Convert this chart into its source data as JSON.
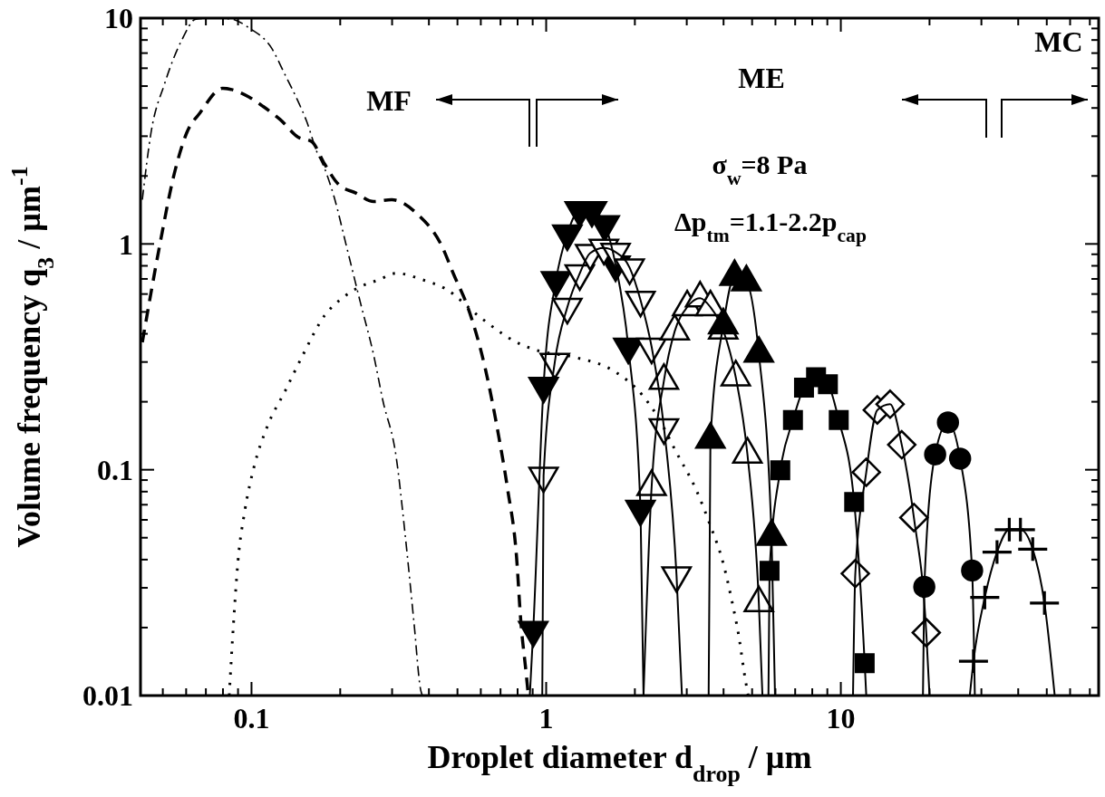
{
  "chart_data": {
    "type": "line",
    "xlabel": "Droplet diameter d$_{drop}$ / µm",
    "ylabel": "Volume frequency q$_{3}$ / µm$^{-1}$",
    "log": "xy",
    "xlim": [
      0.042,
      75
    ],
    "ylim": [
      0.01,
      10
    ],
    "xticks": [
      {
        "value": 0.05,
        "label": null
      },
      {
        "value": 0.06,
        "label": null
      },
      {
        "value": 0.07,
        "label": null
      },
      {
        "value": 0.08,
        "label": null
      },
      {
        "value": 0.09,
        "label": null
      },
      0.1,
      {
        "value": 0.2,
        "label": null
      },
      {
        "value": 0.3,
        "label": null
      },
      {
        "value": 0.4,
        "label": null
      },
      {
        "value": 0.5,
        "label": null
      },
      {
        "value": 0.6,
        "label": null
      },
      {
        "value": 0.7,
        "label": null
      },
      {
        "value": 0.8,
        "label": null
      },
      {
        "value": 0.9,
        "label": null
      },
      1,
      {
        "value": 2,
        "label": null
      },
      {
        "value": 3,
        "label": null
      },
      {
        "value": 4,
        "label": null
      },
      {
        "value": 5,
        "label": null
      },
      {
        "value": 6,
        "label": null
      },
      {
        "value": 7,
        "label": null
      },
      {
        "value": 8,
        "label": null
      },
      {
        "value": 9,
        "label": null
      },
      10,
      {
        "value": 20,
        "label": null
      },
      {
        "value": 30,
        "label": null
      },
      {
        "value": 40,
        "label": null
      },
      {
        "value": 50,
        "label": null
      },
      {
        "value": 60,
        "label": null
      },
      {
        "value": 70,
        "label": null
      }
    ],
    "yticks": [
      0.01,
      {
        "value": 0.02,
        "label": null
      },
      {
        "value": 0.03,
        "label": null
      },
      {
        "value": 0.04,
        "label": null
      },
      {
        "value": 0.05,
        "label": null
      },
      {
        "value": 0.06,
        "label": null
      },
      {
        "value": 0.07,
        "label": null
      },
      {
        "value": 0.08,
        "label": null
      },
      {
        "value": 0.09,
        "label": null
      },
      0.1,
      {
        "value": 0.2,
        "label": null
      },
      {
        "value": 0.3,
        "label": null
      },
      {
        "value": 0.4,
        "label": null
      },
      {
        "value": 0.5,
        "label": null
      },
      {
        "value": 0.6,
        "label": null
      },
      {
        "value": 0.7,
        "label": null
      },
      {
        "value": 0.8,
        "label": null
      },
      {
        "value": 0.9,
        "label": null
      },
      1,
      {
        "value": 2,
        "label": null
      },
      {
        "value": 3,
        "label": null
      },
      {
        "value": 4,
        "label": null
      },
      {
        "value": 5,
        "label": null
      },
      {
        "value": 6,
        "label": null
      },
      {
        "value": 7,
        "label": null
      },
      {
        "value": 8,
        "label": null
      },
      {
        "value": 9,
        "label": null
      },
      10
    ],
    "grid": false,
    "annotations": [
      "MF",
      "ME",
      "MC",
      "σ$_{w}$=8 Pa",
      "Δp$_{tm}$=1.1-2.2p$_{cap}$"
    ],
    "series": [
      {
        "type": "line",
        "line_style": "dashed",
        "color": "#000000",
        "x": [
          0.0426,
          0.0489,
          0.0543,
          0.0603,
          0.0669,
          0.0798,
          0.0982,
          0.109,
          0.125,
          0.144,
          0.16,
          0.177,
          0.197,
          0.226,
          0.26,
          0.299,
          0.369,
          0.439,
          0.487,
          0.541,
          0.622,
          0.69,
          0.74,
          0.793,
          0.821,
          0.855,
          0.87
        ],
        "values": [
          0.367,
          1.0,
          1.97,
          3.11,
          3.81,
          4.89,
          4.47,
          4.08,
          3.56,
          2.97,
          2.84,
          2.26,
          1.84,
          1.68,
          1.54,
          1.57,
          1.34,
          1.0,
          0.726,
          0.528,
          0.279,
          0.141,
          0.082,
          0.0414,
          0.021,
          0.0126,
          0.01
        ]
      },
      {
        "type": "line",
        "line_style": "dashdot",
        "color": "#000000",
        "x": [
          0.0426,
          0.0456,
          0.0507,
          0.0582,
          0.0647,
          0.075,
          0.0855,
          0.0982,
          0.117,
          0.13,
          0.144,
          0.154,
          0.166,
          0.177,
          0.19,
          0.211,
          0.234,
          0.26,
          0.279,
          0.31,
          0.332,
          0.356,
          0.375,
          0.38
        ],
        "values": [
          1.57,
          3.11,
          5.12,
          8.07,
          9.9,
          10,
          9.9,
          9.04,
          7.36,
          5.61,
          4.27,
          3.48,
          2.59,
          2.16,
          1.64,
          0.953,
          0.552,
          0.32,
          0.203,
          0.113,
          0.052,
          0.021,
          0.0106,
          0.01
        ]
      },
      {
        "type": "line",
        "line_style": "dotted",
        "color": "#000000",
        "x": [
          0.084,
          0.0869,
          0.09,
          0.0948,
          0.102,
          0.113,
          0.13,
          0.149,
          0.177,
          0.204,
          0.234,
          0.27,
          0.31,
          0.382,
          0.454,
          0.6,
          0.793,
          0.929,
          1.25,
          1.67,
          2.12,
          2.37,
          2.77,
          3.23,
          3.61,
          3.99,
          4.27,
          4.52,
          4.72,
          4.85
        ],
        "values": [
          0.01,
          0.021,
          0.0396,
          0.0653,
          0.103,
          0.155,
          0.223,
          0.32,
          0.482,
          0.578,
          0.647,
          0.693,
          0.742,
          0.693,
          0.634,
          0.471,
          0.367,
          0.338,
          0.315,
          0.277,
          0.214,
          0.175,
          0.119,
          0.0814,
          0.0565,
          0.0385,
          0.0262,
          0.0179,
          0.0122,
          0.01
        ]
      },
      {
        "type": "line",
        "line_style": "solid",
        "color": "#000000",
        "x": [
          0.88,
          0.904,
          0.98,
          1.08,
          1.18,
          1.3,
          1.43,
          1.58,
          1.72,
          1.9,
          2.09,
          2.14
        ],
        "values": [
          0.01,
          0.0195,
          0.235,
          0.69,
          1.11,
          1.41,
          1.41,
          1.22,
          0.81,
          0.35,
          0.067,
          0.01
        ]
      },
      {
        "type": "line",
        "line_style": "solid",
        "color": "#000000",
        "x": [
          0.97,
          0.98,
          1.07,
          1.18,
          1.3,
          1.41,
          1.57,
          1.72,
          1.92,
          2.09,
          2.28,
          2.51,
          2.77,
          2.89
        ],
        "values": [
          0.01,
          0.094,
          0.3,
          0.525,
          0.74,
          0.91,
          0.96,
          0.92,
          0.785,
          0.565,
          0.35,
          0.154,
          0.034,
          0.01
        ]
      },
      {
        "type": "line",
        "line_style": "solid",
        "color": "#000000",
        "x": [
          2.14,
          2.28,
          2.51,
          2.73,
          3.01,
          3.33,
          3.61,
          3.99,
          4.4,
          4.82,
          5.27,
          5.42
        ],
        "values": [
          0.01,
          0.084,
          0.248,
          0.41,
          0.525,
          0.575,
          0.525,
          0.414,
          0.257,
          0.117,
          0.0257,
          0.01
        ]
      },
      {
        "type": "line",
        "line_style": "solid",
        "color": "#000000",
        "x": [
          3.56,
          3.61,
          3.99,
          4.36,
          4.78,
          5.27,
          5.82,
          5.98
        ],
        "values": [
          0.01,
          0.136,
          0.437,
          0.716,
          0.678,
          0.327,
          0.0506,
          0.01
        ]
      },
      {
        "type": "line",
        "line_style": "solid",
        "color": "#000000",
        "x": [
          5.68,
          5.73,
          6.23,
          6.88,
          7.5,
          8.24,
          9.04,
          9.84,
          11.1,
          12.05,
          12.2
        ],
        "values": [
          0.01,
          0.0357,
          0.0995,
          0.166,
          0.231,
          0.257,
          0.239,
          0.166,
          0.072,
          0.0139,
          0.01
        ]
      },
      {
        "type": "line",
        "line_style": "solid",
        "color": "#000000",
        "x": [
          11.0,
          11.2,
          12.2,
          13.3,
          14.7,
          16.1,
          17.7,
          19.5,
          20.0
        ],
        "values": [
          0.01,
          0.0347,
          0.0975,
          0.184,
          0.195,
          0.129,
          0.0614,
          0.019,
          0.01
        ]
      },
      {
        "type": "line",
        "line_style": "solid",
        "color": "#000000",
        "x": [
          19.0,
          19.2,
          20.9,
          23.1,
          25.4,
          27.9,
          28.5
        ],
        "values": [
          0.01,
          0.0303,
          0.117,
          0.162,
          0.112,
          0.0358,
          0.01
        ]
      },
      {
        "type": "line",
        "line_style": "solid",
        "color": "#000000",
        "x": [
          27.4,
          28.2,
          30.8,
          33.9,
          37.3,
          40.7,
          44.8,
          49.1,
          53.2
        ],
        "values": [
          0.01,
          0.0142,
          0.0272,
          0.0432,
          0.0543,
          0.0543,
          0.0445,
          0.0257,
          0.01
        ]
      },
      {
        "type": "scatter",
        "marker": "triangle-down",
        "color": "#000000",
        "x": [
          0.904,
          0.98,
          1.08,
          1.18,
          1.3,
          1.43,
          1.58,
          1.72,
          1.9,
          2.09
        ],
        "values": [
          0.0195,
          0.235,
          0.69,
          1.11,
          1.41,
          1.41,
          1.22,
          0.81,
          0.35,
          0.067
        ]
      },
      {
        "type": "scatter",
        "marker": "triangle-down",
        "color": "#ffffff",
        "x": [
          0.98,
          1.07,
          1.18,
          1.3,
          1.41,
          1.57,
          1.72,
          1.92,
          2.09,
          2.28,
          2.51,
          2.77
        ],
        "values": [
          0.094,
          0.3,
          0.525,
          0.74,
          0.91,
          0.96,
          0.92,
          0.785,
          0.565,
          0.35,
          0.154,
          0.034
        ]
      },
      {
        "type": "scatter",
        "marker": "triangle",
        "color": "#ffffff",
        "x": [
          2.28,
          2.51,
          2.73,
          3.01,
          3.33,
          3.61,
          3.99,
          4.4,
          4.82,
          5.27
        ],
        "values": [
          0.084,
          0.248,
          0.41,
          0.525,
          0.575,
          0.525,
          0.414,
          0.257,
          0.117,
          0.0257
        ]
      },
      {
        "type": "scatter",
        "marker": "triangle",
        "color": "#000000",
        "x": [
          3.61,
          3.99,
          4.36,
          4.78,
          5.27,
          5.82
        ],
        "values": [
          0.136,
          0.437,
          0.716,
          0.678,
          0.327,
          0.0506
        ]
      },
      {
        "type": "scatter",
        "marker": "square",
        "color": "#000000",
        "x": [
          5.73,
          6.23,
          6.88,
          7.5,
          8.24,
          9.04,
          9.84,
          11.1,
          12.05
        ],
        "values": [
          0.0357,
          0.0995,
          0.166,
          0.231,
          0.257,
          0.239,
          0.166,
          0.072,
          0.0139
        ]
      },
      {
        "type": "scatter",
        "marker": "diamond",
        "color": "#ffffff",
        "x": [
          11.2,
          12.2,
          13.3,
          14.7,
          16.1,
          17.7,
          19.5
        ],
        "values": [
          0.0347,
          0.0975,
          0.184,
          0.195,
          0.129,
          0.0614,
          0.019
        ]
      },
      {
        "type": "scatter",
        "marker": "circle",
        "color": "#000000",
        "x": [
          19.2,
          20.9,
          23.1,
          25.4,
          27.9
        ],
        "values": [
          0.0303,
          0.117,
          0.162,
          0.112,
          0.0358
        ]
      },
      {
        "type": "scatter",
        "marker": "cross",
        "color": "#000000",
        "x": [
          28.2,
          30.8,
          33.9,
          37.3,
          40.7,
          44.8,
          49.1
        ],
        "values": [
          0.0142,
          0.0272,
          0.0432,
          0.0543,
          0.0543,
          0.0445,
          0.0257
        ]
      }
    ]
  }
}
